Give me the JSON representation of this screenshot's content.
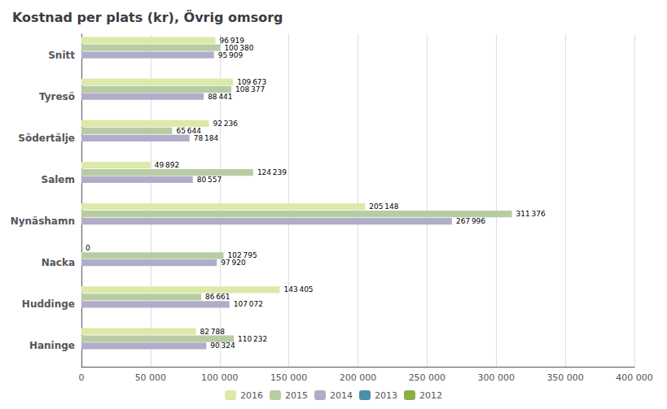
{
  "chart_data": {
    "type": "bar",
    "orientation": "horizontal",
    "title": "Kostnad per plats (kr), Övrig omsorg",
    "categories": [
      "Snitt",
      "Tyresö",
      "Södertälje",
      "Salem",
      "Nynäshamn",
      "Nacka",
      "Huddinge",
      "Haninge"
    ],
    "series": [
      {
        "name": "2016",
        "color": "#dce9a8",
        "values": [
          96919,
          109673,
          92236,
          49892,
          205148,
          0,
          143405,
          82788
        ],
        "value_labels": [
          "96 919",
          "109 673",
          "92 236",
          "49 892",
          "205 148",
          "0",
          "143 405",
          "82 788"
        ]
      },
      {
        "name": "2015",
        "color": "#b8cca4",
        "values": [
          100380,
          108377,
          65644,
          124239,
          311376,
          102795,
          86661,
          110232
        ],
        "value_labels": [
          "100 380",
          "108 377",
          "65 644",
          "124 239",
          "311 376",
          "102 795",
          "86 661",
          "110 232"
        ]
      },
      {
        "name": "2014",
        "color": "#b0adc8",
        "values": [
          95909,
          88441,
          78184,
          80557,
          267996,
          97920,
          107072,
          90324
        ],
        "value_labels": [
          "95 909",
          "88 441",
          "78 184",
          "80 557",
          "267 996",
          "97 920",
          "107 072",
          "90 324"
        ]
      },
      {
        "name": "2013",
        "color": "#4a8fa8",
        "values": [
          0,
          0,
          0,
          0,
          0,
          0,
          0,
          0
        ]
      },
      {
        "name": "2012",
        "color": "#8ab044",
        "values": [
          0,
          0,
          0,
          0,
          0,
          0,
          0,
          0
        ]
      }
    ],
    "xlim": [
      0,
      400000
    ],
    "xticks": [
      0,
      {
        "value": 50000,
        "label": "50 000"
      },
      {
        "value": 100000,
        "label": "100 000"
      },
      {
        "value": 150000,
        "label": "150 000"
      },
      {
        "value": 200000,
        "label": "200 000"
      },
      {
        "value": 250000,
        "label": "250 000"
      },
      {
        "value": 300000,
        "label": "300 000"
      },
      {
        "value": 350000,
        "label": "350 000"
      },
      {
        "value": 400000,
        "label": "400 000"
      }
    ],
    "grid": true,
    "legend": "bottom",
    "data_labels": true
  }
}
